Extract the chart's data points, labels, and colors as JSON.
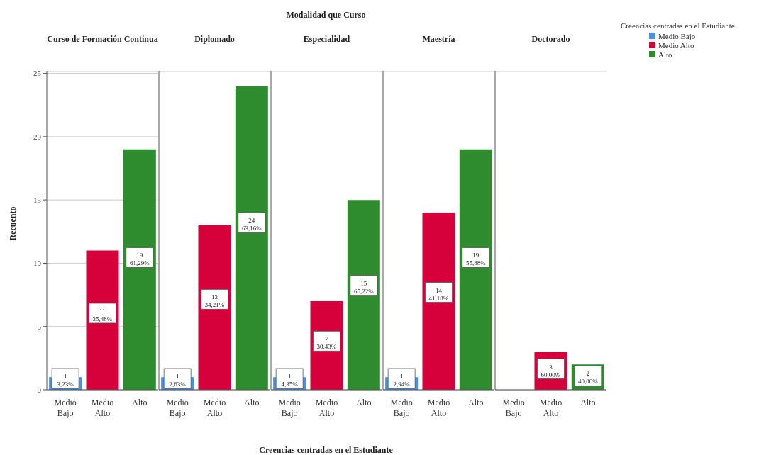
{
  "chart_data": [
    {
      "type": "bar",
      "title": "Curso de Formación Continua",
      "ylabel": "Recuento",
      "categories": [
        "Medio Bajo",
        "Medio Alto",
        "Alto"
      ],
      "ylim": [
        0,
        25.2
      ],
      "yticks": [
        0,
        5,
        10,
        15,
        20,
        25
      ],
      "grid": "y",
      "series": [
        {
          "color": "#4a90e2",
          "values": [
            1,
            null,
            null
          ],
          "value_labels": [
            "1\n3,23%",
            null,
            null
          ]
        },
        {
          "color": "#d6003a",
          "values": [
            null,
            11,
            null
          ],
          "value_labels": [
            null,
            "11\n35,48%",
            null
          ]
        },
        {
          "color": "#2e8b2e",
          "values": [
            null,
            null,
            19
          ],
          "value_labels": [
            null,
            null,
            "19\n61,29%"
          ]
        }
      ]
    },
    {
      "type": "bar",
      "title": "Diplomado",
      "categories": [
        "Medio Bajo",
        "Medio Alto",
        "Alto"
      ],
      "ylim": [
        0,
        25.2
      ],
      "yticks": [
        0,
        5,
        10,
        15,
        20,
        25
      ],
      "grid": "y",
      "tick_labels": "x",
      "series": [
        {
          "color": "#4a90e2",
          "values": [
            1,
            null,
            null
          ],
          "value_labels": [
            "1\n2,63%",
            null,
            null
          ]
        },
        {
          "color": "#d6003a",
          "values": [
            null,
            13,
            null
          ],
          "value_labels": [
            null,
            "13\n34,21%",
            null
          ]
        },
        {
          "color": "#2e8b2e",
          "values": [
            null,
            null,
            24
          ],
          "value_labels": [
            null,
            null,
            "24\n63,16%"
          ]
        }
      ]
    },
    {
      "type": "bar",
      "title": "Especialidad",
      "annotations": [
        "Modalidad que Curso"
      ],
      "xlabel": "Creencias centradas en el Estudiante",
      "categories": [
        "Medio Bajo",
        "Medio Alto",
        "Alto"
      ],
      "ylim": [
        0,
        25.2
      ],
      "yticks": [
        0,
        5,
        10,
        15,
        20,
        25
      ],
      "grid": "y",
      "tick_labels": "x",
      "series": [
        {
          "color": "#4a90e2",
          "values": [
            1,
            null,
            null
          ],
          "value_labels": [
            "1\n4,35%",
            null,
            null
          ]
        },
        {
          "color": "#d6003a",
          "values": [
            null,
            7,
            null
          ],
          "value_labels": [
            null,
            "7\n30,43%",
            null
          ]
        },
        {
          "color": "#2e8b2e",
          "values": [
            null,
            null,
            15
          ],
          "value_labels": [
            null,
            null,
            "15\n65,22%"
          ]
        }
      ]
    },
    {
      "type": "bar",
      "title": "Maestría",
      "categories": [
        "Medio Bajo",
        "Medio Alto",
        "Alto"
      ],
      "ylim": [
        0,
        25.2
      ],
      "yticks": [
        0,
        5,
        10,
        15,
        20,
        25
      ],
      "grid": "y",
      "tick_labels": "x",
      "series": [
        {
          "color": "#4a90e2",
          "values": [
            1,
            null,
            null
          ],
          "value_labels": [
            "1\n2,94%",
            null,
            null
          ]
        },
        {
          "color": "#d6003a",
          "values": [
            null,
            14,
            null
          ],
          "value_labels": [
            null,
            "14\n41,18%",
            null
          ]
        },
        {
          "color": "#2e8b2e",
          "values": [
            null,
            null,
            19
          ],
          "value_labels": [
            null,
            null,
            "19\n55,88%"
          ]
        }
      ]
    },
    {
      "type": "bar",
      "title": "Doctorado",
      "categories": [
        "Medio Bajo",
        "Medio Alto",
        "Alto"
      ],
      "ylim": [
        0,
        25.2
      ],
      "yticks": [
        0,
        5,
        10,
        15,
        20,
        25
      ],
      "grid": "y",
      "tick_labels": "x",
      "legend": "right",
      "legend_title": "Creencias centradas en el Estudiante",
      "series": [
        {
          "name": "Medio Bajo",
          "color": "#4a90e2",
          "values": [
            0,
            null,
            null
          ],
          "value_labels": [
            null,
            null,
            null
          ]
        },
        {
          "name": "Medio Alto",
          "color": "#d6003a",
          "values": [
            null,
            3,
            null
          ],
          "value_labels": [
            null,
            "3\n60,00%",
            null
          ]
        },
        {
          "name": "Alto",
          "color": "#2e8b2e",
          "values": [
            null,
            null,
            2
          ],
          "value_labels": [
            null,
            null,
            "2\n40,00%"
          ]
        }
      ]
    }
  ]
}
